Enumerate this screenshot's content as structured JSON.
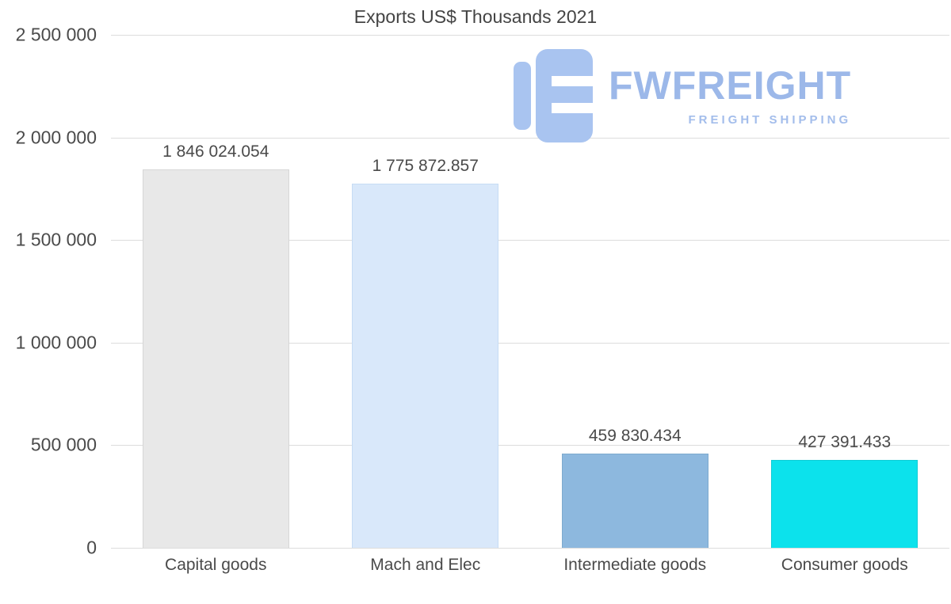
{
  "chart_data": {
    "type": "bar",
    "title": "Exports US$ Thousands 2021",
    "categories": [
      "Capital goods",
      "Mach and Elec",
      "Intermediate goods",
      "Consumer goods"
    ],
    "values": [
      1846024.054,
      1775872.857,
      459830.434,
      427391.433
    ],
    "value_labels": [
      "1 846 024.054",
      "1 775 872.857",
      "459 830.434",
      "427 391.433"
    ],
    "bar_colors": [
      "#e8e8e8",
      "#d9e8fa",
      "#8db8de",
      "#0ce2ec"
    ],
    "bar_border_colors": [
      "#d6d6d6",
      "#c6dcf4",
      "#7daace",
      "#10ccd5"
    ],
    "xlabel": "",
    "ylabel": "",
    "ylim": [
      0,
      2500000
    ],
    "ytick_labels": [
      "2 500 000",
      "2 000 000",
      "1 500 000",
      "1 000 000",
      "500 000",
      "0"
    ],
    "grid": true,
    "legend": "none",
    "text_color": "#4a4a4a",
    "grid_color": "#dcdcdc"
  },
  "watermark": {
    "brand": "FWFREIGHT",
    "tagline": "FREIGHT SHIPPING",
    "brand_color": "#9cb8e9",
    "tagline_color": "#a3bdeb",
    "logo_color": "#a9c4f0"
  }
}
